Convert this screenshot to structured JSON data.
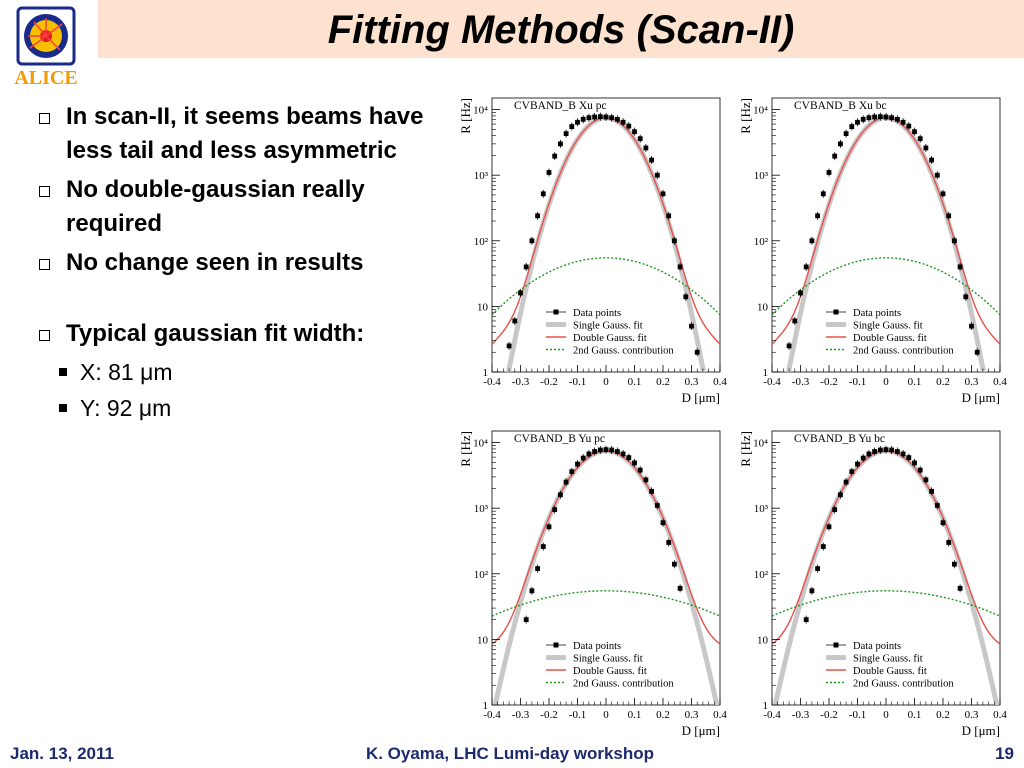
{
  "slide": {
    "title": "Fitting Methods (Scan-II)",
    "logo_text": "ALICE",
    "bullets": [
      {
        "text": "In scan-II, it seems beams have less tail and less asymmetric"
      },
      {
        "text": "No double-gaussian really required"
      },
      {
        "text": "No change seen in results"
      },
      {
        "text": "Typical gaussian fit width:"
      }
    ],
    "sub_bullets": [
      "X: 81 μm",
      "Y: 92 μm"
    ],
    "footer": {
      "date": "Jan. 13, 2011",
      "presenter": "K. Oyama, LHC Lumi-day workshop",
      "page": "19"
    }
  },
  "chart_data": [
    {
      "type": "scatter",
      "title": "CVBAND_B Xu pc",
      "xlabel": "D [μm]",
      "ylabel": "R [Hz]",
      "xlim": [
        -0.4,
        0.4
      ],
      "yscale": "log",
      "ylim": [
        1,
        15000
      ],
      "x_ticks": [
        "-0.4",
        "-0.3",
        "-0.2",
        "-0.1",
        "0",
        "0.1",
        "0.2",
        "0.3",
        "0.4"
      ],
      "y_ticks": [
        "1",
        "10",
        "10²",
        "10³",
        "10⁴"
      ],
      "legend": [
        "Data points",
        "Single Gauss. fit",
        "Double Gauss. fit",
        "2nd Gauss. contribution"
      ],
      "legend_position": "bottom-right",
      "colors": {
        "data": "#000000",
        "single": "#c8c8c8",
        "double": "#e8504a",
        "second": "#1f9a1f"
      },
      "fit": {
        "amp": 7500,
        "mean": 0.0,
        "sigma": 0.081
      },
      "second_gauss": {
        "amp": 55,
        "mean": 0.0,
        "sigma": 0.2
      },
      "points": [
        [
          -0.34,
          2.5
        ],
        [
          -0.32,
          6
        ],
        [
          -0.3,
          16
        ],
        [
          -0.28,
          40
        ],
        [
          -0.26,
          100
        ],
        [
          -0.24,
          240
        ],
        [
          -0.22,
          520
        ],
        [
          -0.2,
          1100
        ],
        [
          -0.18,
          1950
        ],
        [
          -0.16,
          3000
        ],
        [
          -0.14,
          4300
        ],
        [
          -0.12,
          5500
        ],
        [
          -0.1,
          6400
        ],
        [
          -0.08,
          7100
        ],
        [
          -0.06,
          7500
        ],
        [
          -0.04,
          7700
        ],
        [
          -0.02,
          7800
        ],
        [
          0.0,
          7700
        ],
        [
          0.02,
          7500
        ],
        [
          0.04,
          7100
        ],
        [
          0.06,
          6400
        ],
        [
          0.08,
          5600
        ],
        [
          0.1,
          4600
        ],
        [
          0.12,
          3600
        ],
        [
          0.14,
          2600
        ],
        [
          0.16,
          1700
        ],
        [
          0.18,
          1000
        ],
        [
          0.2,
          520
        ],
        [
          0.22,
          240
        ],
        [
          0.24,
          100
        ],
        [
          0.26,
          40
        ],
        [
          0.28,
          14
        ],
        [
          0.3,
          5
        ],
        [
          0.32,
          2
        ]
      ]
    },
    {
      "type": "scatter",
      "title": "CVBAND_B Xu bc",
      "xlabel": "D [μm]",
      "ylabel": "R [Hz]",
      "xlim": [
        -0.4,
        0.4
      ],
      "yscale": "log",
      "ylim": [
        1,
        15000
      ],
      "x_ticks": [
        "-0.4",
        "-0.3",
        "-0.2",
        "-0.1",
        "0",
        "0.1",
        "0.2",
        "0.3",
        "0.4"
      ],
      "y_ticks": [
        "1",
        "10",
        "10²",
        "10³",
        "10⁴"
      ],
      "legend": [
        "Data points",
        "Single Gauss. fit",
        "Double Gauss. fit",
        "2nd Gauss. contribution"
      ],
      "legend_position": "bottom-right",
      "colors": {
        "data": "#000000",
        "single": "#c8c8c8",
        "double": "#e8504a",
        "second": "#1f9a1f"
      },
      "fit": {
        "amp": 7500,
        "mean": 0.0,
        "sigma": 0.081
      },
      "second_gauss": {
        "amp": 55,
        "mean": 0.0,
        "sigma": 0.2
      },
      "points": [
        [
          -0.34,
          2.5
        ],
        [
          -0.32,
          6
        ],
        [
          -0.3,
          16
        ],
        [
          -0.28,
          40
        ],
        [
          -0.26,
          100
        ],
        [
          -0.24,
          240
        ],
        [
          -0.22,
          520
        ],
        [
          -0.2,
          1100
        ],
        [
          -0.18,
          1950
        ],
        [
          -0.16,
          3000
        ],
        [
          -0.14,
          4300
        ],
        [
          -0.12,
          5500
        ],
        [
          -0.1,
          6400
        ],
        [
          -0.08,
          7100
        ],
        [
          -0.06,
          7500
        ],
        [
          -0.04,
          7700
        ],
        [
          -0.02,
          7800
        ],
        [
          0.0,
          7700
        ],
        [
          0.02,
          7500
        ],
        [
          0.04,
          7100
        ],
        [
          0.06,
          6400
        ],
        [
          0.08,
          5600
        ],
        [
          0.1,
          4600
        ],
        [
          0.12,
          3600
        ],
        [
          0.14,
          2600
        ],
        [
          0.16,
          1700
        ],
        [
          0.18,
          1000
        ],
        [
          0.2,
          520
        ],
        [
          0.22,
          240
        ],
        [
          0.24,
          100
        ],
        [
          0.26,
          40
        ],
        [
          0.28,
          14
        ],
        [
          0.3,
          5
        ],
        [
          0.32,
          2
        ]
      ]
    },
    {
      "type": "scatter",
      "title": "CVBAND_B Yu pc",
      "xlabel": "D [μm]",
      "ylabel": "R [Hz]",
      "xlim": [
        -0.4,
        0.4
      ],
      "yscale": "log",
      "ylim": [
        1,
        15000
      ],
      "x_ticks": [
        "-0.4",
        "-0.3",
        "-0.2",
        "-0.1",
        "0",
        "0.1",
        "0.2",
        "0.3",
        "0.4"
      ],
      "y_ticks": [
        "1",
        "10",
        "10²",
        "10³",
        "10⁴"
      ],
      "legend": [
        "Data points",
        "Single Gauss. fit",
        "Double Gauss. fit",
        "2nd Gauss. contribution"
      ],
      "legend_position": "bottom-right",
      "colors": {
        "data": "#000000",
        "single": "#c8c8c8",
        "double": "#e8504a",
        "second": "#1f9a1f"
      },
      "fit": {
        "amp": 7500,
        "mean": 0.0,
        "sigma": 0.092
      },
      "second_gauss": {
        "amp": 55,
        "mean": 0.0,
        "sigma": 0.3
      },
      "points": [
        [
          -0.28,
          20
        ],
        [
          -0.26,
          55
        ],
        [
          -0.24,
          120
        ],
        [
          -0.22,
          260
        ],
        [
          -0.2,
          520
        ],
        [
          -0.18,
          950
        ],
        [
          -0.16,
          1600
        ],
        [
          -0.14,
          2500
        ],
        [
          -0.12,
          3600
        ],
        [
          -0.1,
          4700
        ],
        [
          -0.08,
          5800
        ],
        [
          -0.06,
          6700
        ],
        [
          -0.04,
          7300
        ],
        [
          -0.02,
          7700
        ],
        [
          0.0,
          7800
        ],
        [
          0.02,
          7700
        ],
        [
          0.04,
          7300
        ],
        [
          0.06,
          6700
        ],
        [
          0.08,
          5900
        ],
        [
          0.1,
          4900
        ],
        [
          0.12,
          3800
        ],
        [
          0.14,
          2700
        ],
        [
          0.16,
          1800
        ],
        [
          0.18,
          1100
        ],
        [
          0.2,
          600
        ],
        [
          0.22,
          300
        ],
        [
          0.24,
          140
        ],
        [
          0.26,
          60
        ]
      ]
    },
    {
      "type": "scatter",
      "title": "CVBAND_B Yu bc",
      "xlabel": "D [μm]",
      "ylabel": "R [Hz]",
      "xlim": [
        -0.4,
        0.4
      ],
      "yscale": "log",
      "ylim": [
        1,
        15000
      ],
      "x_ticks": [
        "-0.4",
        "-0.3",
        "-0.2",
        "-0.1",
        "0",
        "0.1",
        "0.2",
        "0.3",
        "0.4"
      ],
      "y_ticks": [
        "1",
        "10",
        "10²",
        "10³",
        "10⁴"
      ],
      "legend": [
        "Data points",
        "Single Gauss. fit",
        "Double Gauss. fit",
        "2nd Gauss. contribution"
      ],
      "legend_position": "bottom-right",
      "colors": {
        "data": "#000000",
        "single": "#c8c8c8",
        "double": "#e8504a",
        "second": "#1f9a1f"
      },
      "fit": {
        "amp": 7500,
        "mean": 0.0,
        "sigma": 0.092
      },
      "second_gauss": {
        "amp": 55,
        "mean": 0.0,
        "sigma": 0.3
      },
      "points": [
        [
          -0.28,
          20
        ],
        [
          -0.26,
          55
        ],
        [
          -0.24,
          120
        ],
        [
          -0.22,
          260
        ],
        [
          -0.2,
          520
        ],
        [
          -0.18,
          950
        ],
        [
          -0.16,
          1600
        ],
        [
          -0.14,
          2500
        ],
        [
          -0.12,
          3600
        ],
        [
          -0.1,
          4700
        ],
        [
          -0.08,
          5800
        ],
        [
          -0.06,
          6700
        ],
        [
          -0.04,
          7300
        ],
        [
          -0.02,
          7700
        ],
        [
          0.0,
          7800
        ],
        [
          0.02,
          7700
        ],
        [
          0.04,
          7300
        ],
        [
          0.06,
          6700
        ],
        [
          0.08,
          5900
        ],
        [
          0.1,
          4900
        ],
        [
          0.12,
          3800
        ],
        [
          0.14,
          2700
        ],
        [
          0.16,
          1800
        ],
        [
          0.18,
          1100
        ],
        [
          0.2,
          600
        ],
        [
          0.22,
          300
        ],
        [
          0.24,
          140
        ],
        [
          0.26,
          60
        ]
      ]
    }
  ]
}
